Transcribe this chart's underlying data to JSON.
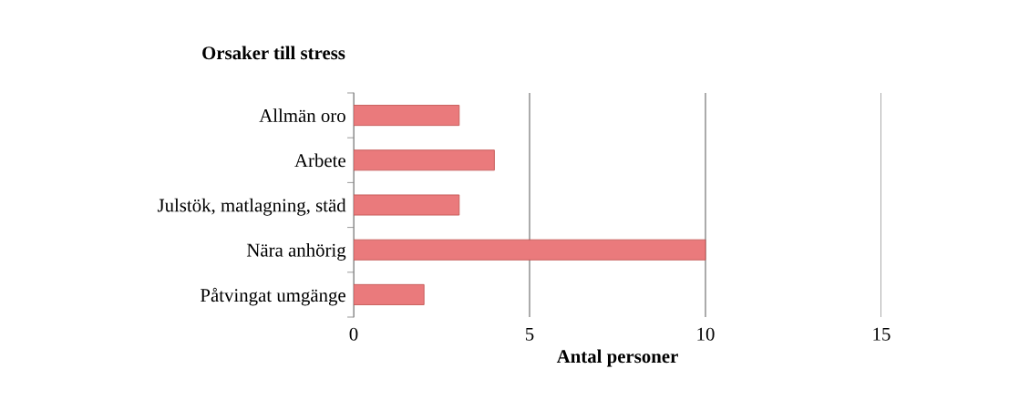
{
  "chart_data": {
    "type": "bar",
    "orientation": "horizontal",
    "ylabel": "Orsaker till stress",
    "xlabel": "Antal personer",
    "categories": [
      "Allmän oro",
      "Arbete",
      "Julstök, matlagning, städ",
      "Nära anhörig",
      "Påtvingat umgänge"
    ],
    "values": [
      3,
      4,
      3,
      10,
      2
    ],
    "color": "#ea7a7c",
    "xlim": [
      0,
      15
    ],
    "xticks": [
      0,
      5,
      10,
      15
    ],
    "grid": "x",
    "legend": false
  }
}
